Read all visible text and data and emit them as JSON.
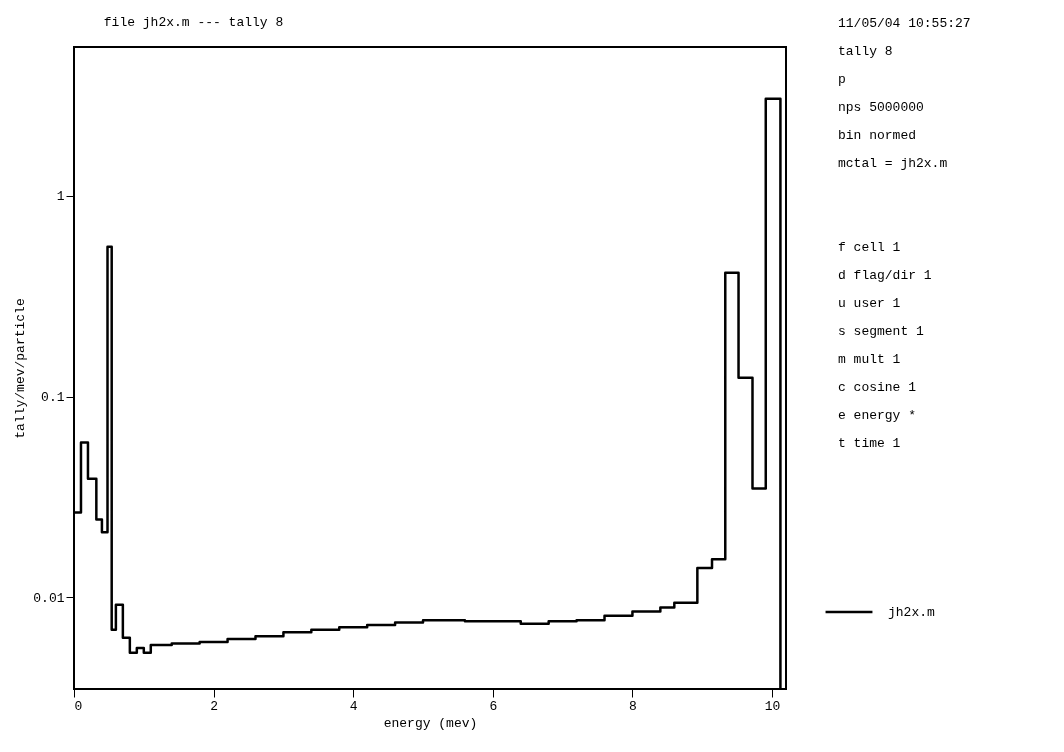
{
  "chart_data": {
    "type": "step",
    "title": "file jh2x.m    --- tally    8",
    "xlabel": "energy (mev)",
    "ylabel": "tally/mev/particle",
    "x": [
      0,
      0.1,
      0.2,
      0.32,
      0.4,
      0.48,
      0.54,
      0.6,
      0.7,
      0.8,
      0.9,
      1.0,
      1.1,
      1.4,
      1.8,
      2.2,
      2.6,
      3.0,
      3.4,
      3.8,
      4.2,
      4.6,
      5.0,
      5.6,
      6.0,
      6.4,
      6.8,
      7.2,
      7.6,
      8.0,
      8.4,
      8.6,
      8.93,
      9.14,
      9.33,
      9.52,
      9.72,
      9.91,
      10.12,
      10.12
    ],
    "series": [
      {
        "name": "jh2x.m",
        "color": "#000000",
        "values": [
          0.0265,
          0.059,
          0.039,
          0.0244,
          0.0211,
          0.557,
          0.0069,
          0.0092,
          0.0063,
          0.0053,
          0.0056,
          0.0053,
          0.0058,
          0.0059,
          0.006,
          0.0062,
          0.0064,
          0.0067,
          0.0069,
          0.0071,
          0.0073,
          0.0075,
          0.0077,
          0.0076,
          0.0076,
          0.0074,
          0.0076,
          0.0077,
          0.0081,
          0.0085,
          0.0089,
          0.0094,
          0.014,
          0.0155,
          0.414,
          0.124,
          0.0349,
          3.04,
          3.04,
          0.0035
        ]
      }
    ],
    "xlim": [
      0,
      10.2
    ],
    "xticks": [
      0,
      2,
      4,
      6,
      8,
      10
    ],
    "ylim": [
      0.0035,
      5.5
    ],
    "yticks": [
      1,
      0.1,
      0.01
    ],
    "log": true,
    "grid": false,
    "legend": "right",
    "line_style": "solid",
    "annotations": [
      "11/05/04 10:55:27",
      "tally 8",
      "p",
      "nps 5000000",
      "bin normed",
      "mctal = jh2x.m",
      "f cell 1",
      "d flag/dir 1",
      "u user 1",
      "s segment 1",
      "m mult 1",
      "c cosine 1",
      "e energy *",
      "t time 1"
    ]
  }
}
